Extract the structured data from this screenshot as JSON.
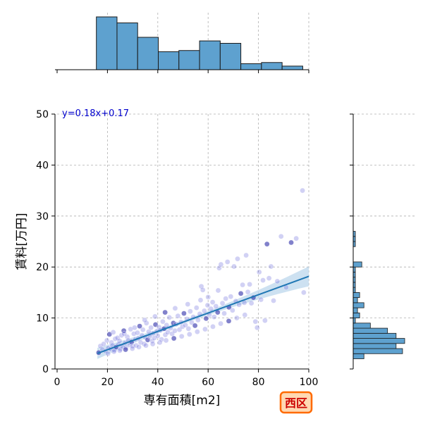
{
  "chart_data": {
    "type": "scatter",
    "xlabel": "専有面積[m2]",
    "ylabel": "賃料[万円]",
    "xlim": [
      0,
      100
    ],
    "ylim": [
      0,
      50
    ],
    "xticks": [
      0,
      20,
      40,
      60,
      80,
      100
    ],
    "yticks": [
      0,
      10,
      20,
      30,
      40,
      50
    ],
    "grid": true,
    "equation": "y=0.18x+0.17",
    "badge": "西区",
    "regression": {
      "slope": 0.18,
      "intercept": 0.17,
      "x_range": [
        16,
        100
      ]
    },
    "points": [
      [
        16.5,
        3.2
      ],
      [
        17.2,
        4.5
      ],
      [
        18.0,
        3.8
      ],
      [
        18.5,
        4.9
      ],
      [
        19.2,
        3.5
      ],
      [
        19.8,
        5.6
      ],
      [
        20.3,
        4.1
      ],
      [
        20.8,
        6.8
      ],
      [
        21.2,
        3.9
      ],
      [
        21.6,
        5.2
      ],
      [
        22.0,
        4.6
      ],
      [
        22.3,
        7.2
      ],
      [
        22.8,
        3.7
      ],
      [
        23.1,
        5.9
      ],
      [
        23.5,
        4.3
      ],
      [
        24.0,
        6.1
      ],
      [
        24.4,
        4.8
      ],
      [
        24.8,
        5.5
      ],
      [
        25.2,
        3.9
      ],
      [
        25.6,
        6.6
      ],
      [
        26.0,
        4.4
      ],
      [
        26.5,
        7.5
      ],
      [
        27.0,
        5.1
      ],
      [
        27.4,
        4.2
      ],
      [
        27.9,
        6.3
      ],
      [
        28.3,
        5.6
      ],
      [
        28.8,
        4.7
      ],
      [
        29.2,
        7.8
      ],
      [
        29.6,
        5.3
      ],
      [
        30.0,
        4.5
      ],
      [
        30.5,
        6.9
      ],
      [
        31.0,
        5.8
      ],
      [
        31.4,
        4.6
      ],
      [
        31.9,
        7.1
      ],
      [
        32.3,
        6.0
      ],
      [
        32.8,
        8.4
      ],
      [
        33.2,
        5.2
      ],
      [
        33.7,
        6.6
      ],
      [
        34.1,
        7.7
      ],
      [
        34.6,
        4.9
      ],
      [
        35.0,
        6.2
      ],
      [
        35.5,
        9.0
      ],
      [
        36.0,
        5.7
      ],
      [
        36.4,
        7.3
      ],
      [
        36.9,
        6.4
      ],
      [
        37.3,
        8.1
      ],
      [
        37.8,
        5.5
      ],
      [
        38.2,
        7.0
      ],
      [
        38.7,
        6.1
      ],
      [
        39.1,
        8.7
      ],
      [
        39.6,
        7.4
      ],
      [
        40.0,
        6.5
      ],
      [
        40.5,
        8.2
      ],
      [
        41.0,
        7.6
      ],
      [
        41.5,
        5.8
      ],
      [
        42.0,
        9.3
      ],
      [
        42.5,
        7.9
      ],
      [
        43.0,
        6.7
      ],
      [
        43.5,
        8.6
      ],
      [
        44.0,
        7.2
      ],
      [
        44.6,
        10.1
      ],
      [
        45.1,
        8.0
      ],
      [
        45.7,
        6.9
      ],
      [
        46.2,
        9.0
      ],
      [
        46.8,
        7.5
      ],
      [
        47.3,
        8.8
      ],
      [
        48.0,
        10.4
      ],
      [
        48.6,
        7.7
      ],
      [
        49.2,
        9.2
      ],
      [
        49.8,
        8.3
      ],
      [
        50.4,
        10.9
      ],
      [
        51.0,
        8.6
      ],
      [
        51.6,
        9.8
      ],
      [
        52.2,
        7.9
      ],
      [
        52.9,
        11.3
      ],
      [
        53.5,
        9.1
      ],
      [
        54.1,
        10.2
      ],
      [
        54.8,
        8.5
      ],
      [
        55.4,
        12.0
      ],
      [
        56.0,
        9.6
      ],
      [
        56.7,
        10.8
      ],
      [
        57.3,
        16.2
      ],
      [
        57.9,
        15.5
      ],
      [
        58.5,
        11.4
      ],
      [
        59.2,
        9.9
      ],
      [
        59.8,
        12.5
      ],
      [
        60.5,
        10.6
      ],
      [
        61.1,
        11.8
      ],
      [
        61.8,
        13.1
      ],
      [
        62.4,
        10.2
      ],
      [
        63.1,
        12.3
      ],
      [
        63.8,
        11.1
      ],
      [
        64.4,
        19.8
      ],
      [
        65.1,
        20.5
      ],
      [
        65.7,
        12.9
      ],
      [
        66.4,
        10.9
      ],
      [
        67.0,
        13.8
      ],
      [
        67.7,
        21.0
      ],
      [
        68.3,
        12.1
      ],
      [
        69.0,
        14.2
      ],
      [
        69.7,
        11.5
      ],
      [
        70.3,
        20.1
      ],
      [
        71.0,
        13.3
      ],
      [
        71.7,
        21.6
      ],
      [
        72.3,
        12.6
      ],
      [
        73.0,
        14.8
      ],
      [
        73.7,
        16.5
      ],
      [
        74.4,
        13.0
      ],
      [
        75.1,
        22.3
      ],
      [
        75.8,
        15.1
      ],
      [
        76.5,
        16.6
      ],
      [
        77.2,
        12.9
      ],
      [
        78.0,
        14.0
      ],
      [
        78.8,
        9.3
      ],
      [
        79.5,
        8.1
      ],
      [
        80.3,
        19.0
      ],
      [
        81.0,
        13.6
      ],
      [
        81.8,
        17.4
      ],
      [
        82.6,
        9.5
      ],
      [
        83.4,
        24.5
      ],
      [
        84.2,
        17.8
      ],
      [
        85.0,
        20.1
      ],
      [
        86.0,
        13.4
      ],
      [
        87.5,
        17.2
      ],
      [
        89.0,
        26.0
      ],
      [
        91.0,
        16.0
      ],
      [
        93.0,
        24.8
      ],
      [
        95.0,
        25.6
      ],
      [
        97.5,
        35.0
      ],
      [
        98.0,
        15.0
      ],
      [
        20.2,
        3.0
      ],
      [
        22.6,
        3.4
      ],
      [
        24.9,
        3.6
      ],
      [
        27.2,
        3.8
      ],
      [
        29.9,
        4.0
      ],
      [
        32.5,
        4.3
      ],
      [
        35.3,
        4.6
      ],
      [
        38.0,
        4.9
      ],
      [
        40.8,
        5.2
      ],
      [
        43.3,
        5.6
      ],
      [
        46.4,
        6.0
      ],
      [
        49.5,
        6.4
      ],
      [
        52.6,
        6.8
      ],
      [
        55.7,
        7.3
      ],
      [
        58.8,
        7.8
      ],
      [
        61.9,
        8.3
      ],
      [
        65.0,
        8.9
      ],
      [
        68.2,
        9.4
      ],
      [
        71.4,
        10.0
      ],
      [
        74.6,
        10.6
      ],
      [
        26.7,
        6.9
      ],
      [
        30.8,
        8.1
      ],
      [
        34.8,
        9.6
      ],
      [
        38.9,
        10.3
      ],
      [
        42.9,
        11.1
      ],
      [
        46.9,
        11.9
      ],
      [
        51.9,
        12.7
      ],
      [
        57.0,
        13.5
      ],
      [
        60.0,
        14.1
      ],
      [
        64.0,
        15.4
      ]
    ],
    "x_hist": {
      "bins": [
        15.6,
        23.8,
        32.0,
        40.2,
        48.4,
        56.6,
        64.8,
        73.0,
        81.2,
        89.4,
        97.6
      ],
      "counts": [
        44,
        39,
        27,
        15,
        16,
        24,
        22,
        5,
        6,
        3
      ]
    },
    "y_hist": {
      "bins": [
        2.0,
        3.0,
        4.0,
        5.0,
        6.0,
        7.0,
        8.0,
        9.0,
        10.0,
        11.0,
        12.0,
        13.0,
        14.0,
        15.0,
        16.0,
        17.0,
        18.0,
        19.0,
        20.0,
        21.0,
        22.0,
        23.0,
        24.0,
        25.0,
        26.0,
        27.0,
        28.0,
        29.0,
        30.0,
        31.0,
        32.0
      ],
      "counts": [
        5,
        23,
        20,
        24,
        20,
        16,
        8,
        1,
        3,
        2,
        5,
        2,
        3,
        1,
        1,
        1,
        1,
        1,
        4,
        0,
        0,
        0,
        1,
        1,
        1,
        0,
        0,
        0,
        0,
        0
      ]
    }
  },
  "colors": {
    "hist_fill": "#5ea1cf",
    "hist_edge": "#1a1a1a",
    "point_fill": "#5b5bd6",
    "point_dark": "#1a1aa0",
    "reg_line": "#1f77b4",
    "ci_band": "#bcd7ec",
    "equation_text": "#0000cc",
    "badge_fill": "#ffd9b3",
    "badge_border": "#ff6a00",
    "badge_text": "#cc0000"
  }
}
